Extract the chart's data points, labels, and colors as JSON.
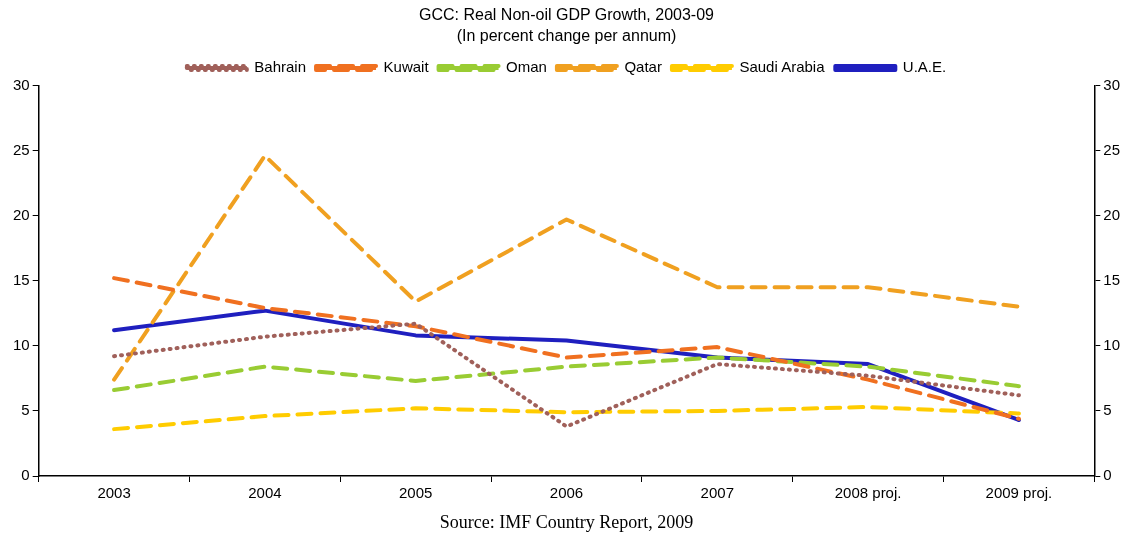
{
  "chart_data": {
    "type": "line",
    "title": "GCC: Real Non-oil GDP Growth, 2003-09",
    "subtitle": "(In percent change per annum)",
    "categories": [
      "2003",
      "2004",
      "2005",
      "2006",
      "2007",
      "2008 proj.",
      "2009 proj."
    ],
    "series": [
      {
        "name": "Bahrain",
        "color": "#a0605a",
        "line_style": "dotted",
        "values": [
          9.2,
          10.7,
          11.7,
          3.8,
          8.6,
          7.7,
          6.2
        ]
      },
      {
        "name": "Kuwait",
        "color": "#f07020",
        "line_style": "dashed",
        "values": [
          15.2,
          12.9,
          11.5,
          9.1,
          9.9,
          7.4,
          4.4
        ]
      },
      {
        "name": "Oman",
        "color": "#99cc33",
        "line_style": "dashed",
        "values": [
          6.6,
          8.4,
          7.3,
          8.4,
          9.1,
          8.4,
          6.9
        ]
      },
      {
        "name": "Qatar",
        "color": "#f0a020",
        "line_style": "dashed",
        "values": [
          7.4,
          24.6,
          13.4,
          19.7,
          14.5,
          14.5,
          13.0
        ]
      },
      {
        "name": "Saudi Arabia",
        "color": "#ffcc00",
        "line_style": "dashed",
        "values": [
          3.6,
          4.6,
          5.2,
          4.9,
          5.0,
          5.3,
          4.8
        ]
      },
      {
        "name": "U.A.E.",
        "color": "#1f1fbf",
        "line_style": "solid",
        "values": [
          11.2,
          12.7,
          10.8,
          10.4,
          9.1,
          8.6,
          4.3
        ]
      }
    ],
    "ylim": [
      0,
      30
    ],
    "yticks": [
      0,
      5,
      10,
      15,
      20,
      25,
      30
    ],
    "y2lim": [
      0,
      30
    ],
    "y2ticks": [
      0,
      5,
      10,
      15,
      20,
      25,
      30
    ],
    "grid": false,
    "legend": "top",
    "marker": "none",
    "annotations": [
      "Source: IMF Country Report, 2009"
    ]
  }
}
